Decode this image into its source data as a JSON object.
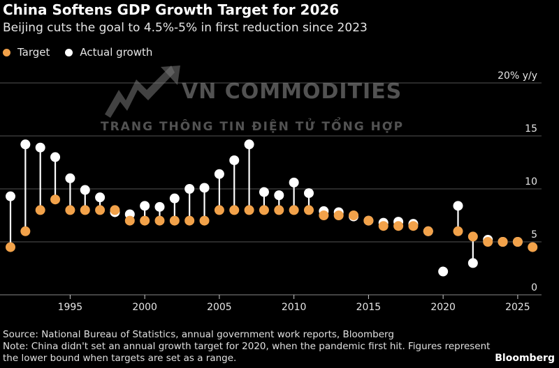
{
  "title": "China Softens GDP Growth Target for 2026",
  "subtitle": "Beijing cuts the goal to 4.5%-5% in first reduction since 2023",
  "colors": {
    "target": "#f2a24a",
    "actual": "#ffffff",
    "stem": "#ffffff",
    "grid": "#555555",
    "background": "#000000"
  },
  "watermark": {
    "line1": "VN COMMODITIES",
    "line2": "TRANG THÔNG TIN ĐIỆN TỬ TỔNG HỢP"
  },
  "chart_data": {
    "type": "scatter",
    "title": "China Softens GDP Growth Target for 2026",
    "xlabel": "",
    "ylabel": "% y/y",
    "xlim": [
      1990.5,
      2026.5
    ],
    "ylim": [
      0,
      20
    ],
    "yticks": [
      0,
      5,
      10,
      15,
      20
    ],
    "ytick_labels": [
      "0",
      "5",
      "10",
      "15",
      "20% y/y"
    ],
    "xticks": [
      1995,
      2000,
      2005,
      2010,
      2015,
      2020,
      2025
    ],
    "xtick_labels": [
      "1995",
      "2000",
      "2005",
      "2010",
      "2015",
      "2020",
      "2025"
    ],
    "legend": [
      "Target",
      "Actual growth"
    ],
    "legend_position": "top-left",
    "series": [
      {
        "name": "Target",
        "points": [
          {
            "year": 1991,
            "value": 4.5
          },
          {
            "year": 1992,
            "value": 6
          },
          {
            "year": 1993,
            "value": 8
          },
          {
            "year": 1994,
            "value": 9
          },
          {
            "year": 1995,
            "value": 8
          },
          {
            "year": 1996,
            "value": 8
          },
          {
            "year": 1997,
            "value": 8
          },
          {
            "year": 1998,
            "value": 8
          },
          {
            "year": 1999,
            "value": 7
          },
          {
            "year": 2000,
            "value": 7
          },
          {
            "year": 2001,
            "value": 7
          },
          {
            "year": 2002,
            "value": 7
          },
          {
            "year": 2003,
            "value": 7
          },
          {
            "year": 2004,
            "value": 7
          },
          {
            "year": 2005,
            "value": 8
          },
          {
            "year": 2006,
            "value": 8
          },
          {
            "year": 2007,
            "value": 8
          },
          {
            "year": 2008,
            "value": 8
          },
          {
            "year": 2009,
            "value": 8
          },
          {
            "year": 2010,
            "value": 8
          },
          {
            "year": 2011,
            "value": 8
          },
          {
            "year": 2012,
            "value": 7.5
          },
          {
            "year": 2013,
            "value": 7.5
          },
          {
            "year": 2014,
            "value": 7.5
          },
          {
            "year": 2015,
            "value": 7
          },
          {
            "year": 2016,
            "value": 6.5
          },
          {
            "year": 2017,
            "value": 6.5
          },
          {
            "year": 2018,
            "value": 6.5
          },
          {
            "year": 2019,
            "value": 6
          },
          {
            "year": 2021,
            "value": 6
          },
          {
            "year": 2022,
            "value": 5.5
          },
          {
            "year": 2023,
            "value": 5
          },
          {
            "year": 2024,
            "value": 5
          },
          {
            "year": 2025,
            "value": 5
          },
          {
            "year": 2026,
            "value": 4.5
          }
        ]
      },
      {
        "name": "Actual growth",
        "points": [
          {
            "year": 1991,
            "value": 9.3
          },
          {
            "year": 1992,
            "value": 14.2
          },
          {
            "year": 1993,
            "value": 13.9
          },
          {
            "year": 1994,
            "value": 13.0
          },
          {
            "year": 1995,
            "value": 11.0
          },
          {
            "year": 1996,
            "value": 9.9
          },
          {
            "year": 1997,
            "value": 9.2
          },
          {
            "year": 1998,
            "value": 7.8
          },
          {
            "year": 1999,
            "value": 7.6
          },
          {
            "year": 2000,
            "value": 8.4
          },
          {
            "year": 2001,
            "value": 8.3
          },
          {
            "year": 2002,
            "value": 9.1
          },
          {
            "year": 2003,
            "value": 10.0
          },
          {
            "year": 2004,
            "value": 10.1
          },
          {
            "year": 2005,
            "value": 11.4
          },
          {
            "year": 2006,
            "value": 12.7
          },
          {
            "year": 2007,
            "value": 14.2
          },
          {
            "year": 2008,
            "value": 9.7
          },
          {
            "year": 2009,
            "value": 9.4
          },
          {
            "year": 2010,
            "value": 10.6
          },
          {
            "year": 2011,
            "value": 9.6
          },
          {
            "year": 2012,
            "value": 7.9
          },
          {
            "year": 2013,
            "value": 7.8
          },
          {
            "year": 2014,
            "value": 7.4
          },
          {
            "year": 2015,
            "value": 7.0
          },
          {
            "year": 2016,
            "value": 6.8
          },
          {
            "year": 2017,
            "value": 6.9
          },
          {
            "year": 2018,
            "value": 6.7
          },
          {
            "year": 2019,
            "value": 6.0
          },
          {
            "year": 2020,
            "value": 2.2
          },
          {
            "year": 2021,
            "value": 8.4
          },
          {
            "year": 2022,
            "value": 3.0
          },
          {
            "year": 2023,
            "value": 5.2
          },
          {
            "year": 2024,
            "value": 5.0
          },
          {
            "year": 2025,
            "value": 5.0
          }
        ]
      }
    ]
  },
  "footer": {
    "source": "Source: National Bureau of Statistics, annual government work reports, Bloomberg",
    "note": "Note: China didn't set an annual growth target for 2020, when the pandemic first hit. Figures represent the lower bound when targets are set as a range."
  },
  "brand": "Bloomberg"
}
